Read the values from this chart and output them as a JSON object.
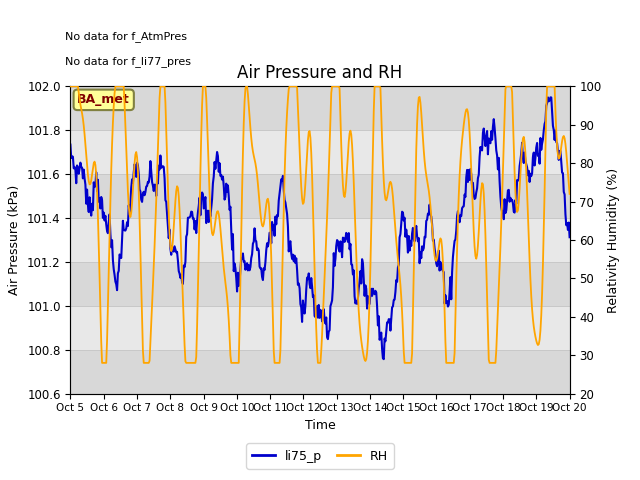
{
  "title": "Air Pressure and RH",
  "xlabel": "Time",
  "ylabel_left": "Air Pressure (kPa)",
  "ylabel_right": "Relativity Humidity (%)",
  "text_no_data": [
    "No data for f_AtmPres",
    "No data for f_li77_pres"
  ],
  "annotation_box": "BA_met",
  "ylim_left": [
    100.6,
    102.0
  ],
  "ylim_right": [
    20,
    100
  ],
  "yticks_left": [
    100.6,
    100.8,
    101.0,
    101.2,
    101.4,
    101.6,
    101.8,
    102.0
  ],
  "yticks_right": [
    20,
    30,
    40,
    50,
    60,
    70,
    80,
    90,
    100
  ],
  "xtick_labels": [
    "Oct 5",
    "Oct 6",
    "Oct 7",
    "Oct 8",
    "Oct 9",
    "Oct 10",
    "Oct 11",
    "Oct 12",
    "Oct 13",
    "Oct 14",
    "Oct 15",
    "Oct 16",
    "Oct 17",
    "Oct 18",
    "Oct 19",
    "Oct 20"
  ],
  "plot_bg_color": "#e8e8e8",
  "grid_color": "#c8c8c8",
  "annotation_box_facecolor": "#ffff99",
  "annotation_box_edgecolor": "#808040",
  "annotation_text_color": "#800000",
  "blue_color": "#0000cc",
  "orange_color": "#FFA500",
  "fig_facecolor": "#ffffff",
  "band_color": "#d8d8d8"
}
